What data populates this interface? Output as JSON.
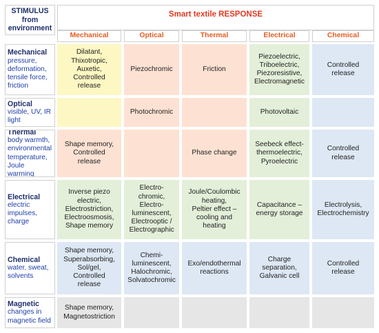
{
  "header": {
    "corner_label": "STIMULUS\nfrom\nenvironment",
    "title": "Smart textile RESPONSE",
    "columns": [
      "Mechanical",
      "Optical",
      "Thermal",
      "Electrical",
      "Chemical"
    ]
  },
  "rows": [
    {
      "title": "Mechanical",
      "desc": "pressure,\ndeformation,\ntensile force,\nfriction",
      "cells": [
        {
          "text": "Dilatant,\nThixotropic,\nAuxetic,\nControlled\nrelease",
          "color": "#fdf7c3"
        },
        {
          "text": "Piezochromic",
          "color": "#fde2d3"
        },
        {
          "text": "Friction",
          "color": "#fde2d3"
        },
        {
          "text": "Piezoelectric,\nTriboelectric,\nPiezoresistive,\nElectromagnetic",
          "color": "#e3efd9"
        },
        {
          "text": "Controlled\nrelease",
          "color": "#dde8f4"
        }
      ]
    },
    {
      "title": "Optical",
      "desc": "visible, UV, IR\nlight",
      "cells": [
        {
          "text": "",
          "color": "#fdf7c3"
        },
        {
          "text": "Photochromic",
          "color": "#fde2d3"
        },
        {
          "text": "",
          "color": "#fde2d3"
        },
        {
          "text": "Photovoltaic",
          "color": "#e3efd9"
        },
        {
          "text": "",
          "color": "#dde8f4"
        }
      ]
    },
    {
      "title": "Thermal",
      "desc": "body warmth,\nenvironmental\ntemperature,\nJoule warming",
      "cells": [
        {
          "text": "Shape memory,\nControlled\nrelease",
          "color": "#fde2d3"
        },
        {
          "text": "",
          "color": "#fde2d3"
        },
        {
          "text": "Phase change",
          "color": "#fde2d3"
        },
        {
          "text": "Seebeck effect-\nthermoelectric,\nPyroelectric",
          "color": "#e3efd9"
        },
        {
          "text": "Controlled\nrelease",
          "color": "#dde8f4"
        }
      ]
    },
    {
      "title": "Electrical",
      "desc": "electric\nimpulses,\ncharge",
      "cells": [
        {
          "text": "Inverse piezo\nelectric,\nElectrostriction,\nElectroosmosis,\nShape memory",
          "color": "#e3efd9"
        },
        {
          "text": "Electro-\nchromic,\nElectro-\nluminescent,\nElectrooptic /\nElectrographic",
          "color": "#e3efd9"
        },
        {
          "text": "Joule/Coulombic\nheating,\nPeltier effect –\ncooling and\nheating",
          "color": "#e3efd9"
        },
        {
          "text": "Capacitance –\nenergy storage",
          "color": "#e3efd9"
        },
        {
          "text": "Electrolysis,\nElectrochemistry",
          "color": "#dde8f4"
        }
      ]
    },
    {
      "title": "Chemical",
      "desc": "water, sweat,\nsolvents",
      "cells": [
        {
          "text": "Shape memory,\nSuperabsorbing,\nSol/gel,\nControlled\nrelease",
          "color": "#dde8f4"
        },
        {
          "text": "Chemi-\nluminescent,\nHalochromic,\nSolvatochromic",
          "color": "#dde8f4"
        },
        {
          "text": "Exo/endothermal\nreactions",
          "color": "#dde8f4"
        },
        {
          "text": "Charge\nseparation,\nGalvanic cell",
          "color": "#dde8f4"
        },
        {
          "text": "Controlled\nrelease",
          "color": "#dde8f4"
        }
      ]
    },
    {
      "title": "Magnetic",
      "desc": "changes in\nmagnetic field",
      "cells": [
        {
          "text": "Shape memory,\nMagnetostriction",
          "color": "#e6e6e6"
        },
        {
          "text": "",
          "color": "#e6e6e6"
        },
        {
          "text": "",
          "color": "#e6e6e6"
        },
        {
          "text": "",
          "color": "#e6e6e6"
        },
        {
          "text": "",
          "color": "#e6e6e6"
        }
      ]
    }
  ]
}
